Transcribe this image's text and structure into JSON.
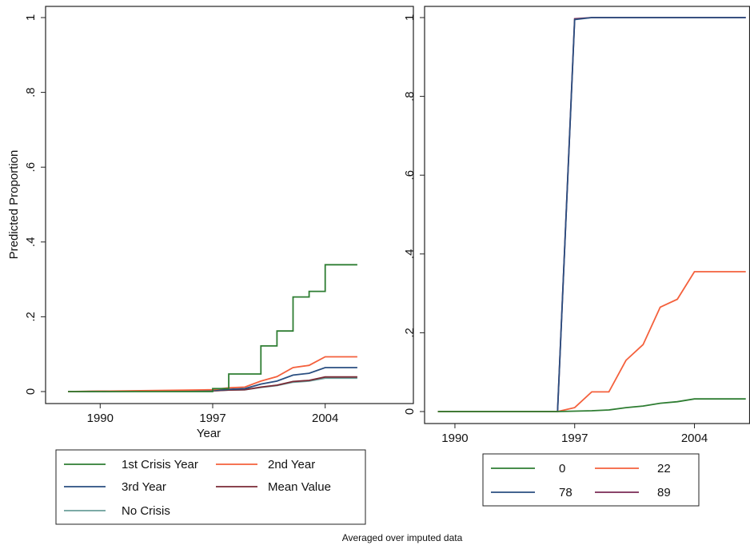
{
  "note": "Averaged over imputed data",
  "chart_data": [
    {
      "type": "line",
      "ylabel": "Predicted Proportion",
      "xlabel": "Year",
      "xlim": [
        1987,
        2007
      ],
      "ylim": [
        0,
        1
      ],
      "xticks": [
        1990,
        1997,
        2004
      ],
      "xtick_labels": [
        "1990",
        "1997",
        "2004"
      ],
      "yticks": [
        0,
        0.2,
        0.4,
        0.6,
        0.8,
        1
      ],
      "ytick_labels": [
        "0",
        ".2",
        ".4",
        ".6",
        ".8",
        "1"
      ],
      "grid": false,
      "legend": {
        "placement": "bottom",
        "columns": 2
      },
      "series": [
        {
          "name": "1st Crisis Year",
          "color": "#2e7d32",
          "step": true,
          "x": [
            1988,
            1997,
            1998,
            1999,
            2000,
            2001,
            2002,
            2003,
            2004,
            2006
          ],
          "y": [
            0,
            0.008,
            0.047,
            0.047,
            0.122,
            0.162,
            0.253,
            0.268,
            0.339,
            0.339
          ]
        },
        {
          "name": "2nd Year",
          "color": "#f4603c",
          "x": [
            1988,
            1997,
            1998,
            1999,
            2000,
            2001,
            2002,
            2003,
            2004,
            2006
          ],
          "y": [
            0,
            0.005,
            0.01,
            0.012,
            0.028,
            0.04,
            0.064,
            0.07,
            0.093,
            0.093
          ]
        },
        {
          "name": "3rd Year",
          "color": "#2a4e80",
          "x": [
            1988,
            1997,
            1998,
            1999,
            2000,
            2001,
            2002,
            2003,
            2004,
            2006
          ],
          "y": [
            0,
            0.003,
            0.006,
            0.008,
            0.02,
            0.028,
            0.044,
            0.049,
            0.064,
            0.064
          ]
        },
        {
          "name": "Mean Value",
          "color": "#7a2a35",
          "x": [
            1988,
            1997,
            1998,
            1999,
            2000,
            2001,
            2002,
            2003,
            2004,
            2006
          ],
          "y": [
            0,
            0.002,
            0.004,
            0.005,
            0.012,
            0.017,
            0.027,
            0.03,
            0.039,
            0.039
          ]
        },
        {
          "name": "No Crisis",
          "color": "#6a9e9a",
          "x": [
            1988,
            1997,
            1998,
            1999,
            2000,
            2001,
            2002,
            2003,
            2004,
            2006
          ],
          "y": [
            0,
            0.002,
            0.004,
            0.005,
            0.011,
            0.016,
            0.025,
            0.028,
            0.036,
            0.036
          ]
        }
      ]
    },
    {
      "type": "line",
      "ylabel": "",
      "xlabel": "",
      "xlim": [
        1988.6,
        2007.2
      ],
      "ylim": [
        0,
        1
      ],
      "xticks": [
        1990,
        1997,
        2004
      ],
      "xtick_labels": [
        "1990",
        "1997",
        "2004"
      ],
      "yticks": [
        0,
        0.2,
        0.4,
        0.6,
        0.8,
        1
      ],
      "ytick_labels": [
        "0",
        ".2",
        ".4",
        ".6",
        ".8",
        "1"
      ],
      "grid": false,
      "legend": {
        "placement": "bottom",
        "columns": 2
      },
      "series": [
        {
          "name": "0",
          "color": "#2e7d32",
          "x": [
            1989,
            1996,
            1997,
            1998,
            1999,
            2000,
            2001,
            2002,
            2003,
            2004,
            2007
          ],
          "y": [
            0,
            0,
            0.001,
            0.002,
            0.004,
            0.01,
            0.014,
            0.021,
            0.025,
            0.032,
            0.032
          ]
        },
        {
          "name": "22",
          "color": "#f4603c",
          "x": [
            1989,
            1996,
            1997,
            1998,
            1999,
            2000,
            2001,
            2002,
            2003,
            2004,
            2007
          ],
          "y": [
            0,
            0,
            0.01,
            0.05,
            0.05,
            0.13,
            0.17,
            0.265,
            0.285,
            0.355,
            0.355
          ]
        },
        {
          "name": "78",
          "color": "#2a4e80",
          "x": [
            1989,
            1996,
            1997,
            1998,
            2007
          ],
          "y": [
            0,
            0,
            0.995,
            1,
            1
          ]
        },
        {
          "name": "89",
          "color": "#7a2a55",
          "x": [
            1989,
            1996,
            1997,
            1998,
            2007
          ],
          "y": [
            0,
            0,
            0.997,
            1,
            1
          ]
        }
      ]
    }
  ]
}
